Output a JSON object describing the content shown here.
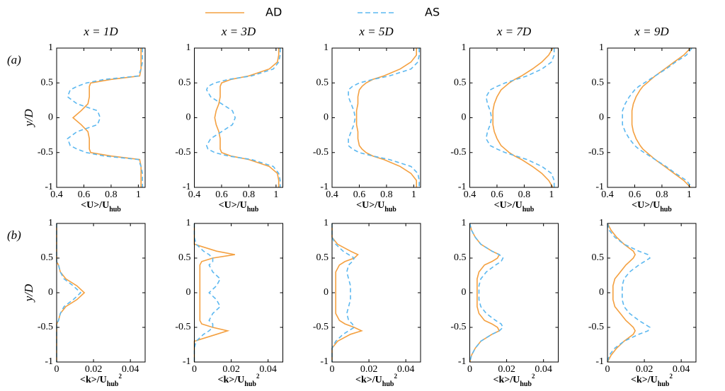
{
  "chart_data": [
    {
      "type": "line",
      "title": "x = 1D",
      "panel_label": "(a)",
      "ylabel": "y/D",
      "xlabel": [
        "<U>/U",
        "hub"
      ],
      "y": [
        1,
        0.9,
        0.8,
        0.7,
        0.6,
        0.55,
        0.5,
        0.45,
        0.4,
        0.3,
        0.2,
        0.1,
        0,
        -0.1,
        -0.2,
        -0.3,
        -0.4,
        -0.45,
        -0.5,
        -0.55,
        -0.6,
        -0.7,
        -0.8,
        -0.9,
        -1
      ],
      "xlim": [
        0.4,
        1.05
      ],
      "xticks": [
        0.4,
        0.6,
        0.8,
        1
      ],
      "ylim": [
        -1,
        1
      ],
      "yticks": [
        -1,
        -0.5,
        0,
        0.5,
        1
      ],
      "series": [
        {
          "name": "AD",
          "color": "#f4a040",
          "style": "solid",
          "values": [
            1.02,
            1.02,
            1.02,
            1.02,
            1.01,
            0.8,
            0.65,
            0.64,
            0.64,
            0.64,
            0.63,
            0.58,
            0.52,
            0.58,
            0.63,
            0.64,
            0.64,
            0.64,
            0.65,
            0.8,
            1.01,
            1.02,
            1.02,
            1.02,
            1.02
          ]
        },
        {
          "name": "AS",
          "color": "#5cb8f0",
          "style": "dashed",
          "values": [
            1.03,
            1.03,
            1.03,
            1.02,
            1.0,
            0.75,
            0.62,
            0.55,
            0.5,
            0.48,
            0.55,
            0.7,
            0.72,
            0.7,
            0.55,
            0.48,
            0.5,
            0.55,
            0.62,
            0.75,
            1.0,
            1.02,
            1.03,
            1.03,
            1.03
          ]
        }
      ]
    },
    {
      "type": "line",
      "title": "x = 3D",
      "xlabel": [
        "<U>/U",
        "hub"
      ],
      "y": [
        1,
        0.9,
        0.8,
        0.7,
        0.6,
        0.55,
        0.5,
        0.45,
        0.4,
        0.3,
        0.2,
        0.1,
        0,
        -0.1,
        -0.2,
        -0.3,
        -0.4,
        -0.45,
        -0.5,
        -0.55,
        -0.6,
        -0.7,
        -0.8,
        -0.9,
        -1
      ],
      "xlim": [
        0.4,
        1.05
      ],
      "xticks": [
        0.4,
        0.6,
        0.8,
        1
      ],
      "ylim": [
        -1,
        1
      ],
      "yticks": [
        -1,
        -0.5,
        0,
        0.5,
        1
      ],
      "series": [
        {
          "name": "AD",
          "color": "#f4a040",
          "style": "solid",
          "values": [
            1.02,
            1.02,
            1.01,
            0.95,
            0.8,
            0.67,
            0.6,
            0.59,
            0.59,
            0.59,
            0.58,
            0.56,
            0.55,
            0.56,
            0.58,
            0.59,
            0.59,
            0.59,
            0.6,
            0.67,
            0.8,
            0.95,
            1.01,
            1.02,
            1.02
          ]
        },
        {
          "name": "AS",
          "color": "#5cb8f0",
          "style": "dashed",
          "values": [
            1.03,
            1.03,
            1.02,
            0.98,
            0.82,
            0.65,
            0.55,
            0.5,
            0.49,
            0.52,
            0.6,
            0.68,
            0.7,
            0.68,
            0.6,
            0.52,
            0.49,
            0.5,
            0.55,
            0.65,
            0.82,
            0.98,
            1.02,
            1.03,
            1.03
          ]
        }
      ]
    },
    {
      "type": "line",
      "title": "x = 5D",
      "xlabel": [
        "<U>/U",
        "hub"
      ],
      "y": [
        1,
        0.9,
        0.8,
        0.7,
        0.6,
        0.55,
        0.5,
        0.45,
        0.4,
        0.3,
        0.2,
        0.1,
        0,
        -0.1,
        -0.2,
        -0.3,
        -0.4,
        -0.45,
        -0.5,
        -0.55,
        -0.6,
        -0.7,
        -0.8,
        -0.9,
        -1
      ],
      "xlim": [
        0.4,
        1.05
      ],
      "xticks": [
        0.4,
        0.6,
        0.8,
        1
      ],
      "ylim": [
        -1,
        1
      ],
      "yticks": [
        -1,
        -0.5,
        0,
        0.5,
        1
      ],
      "series": [
        {
          "name": "AD",
          "color": "#f4a040",
          "style": "solid",
          "values": [
            1.02,
            1.02,
            0.98,
            0.9,
            0.78,
            0.7,
            0.65,
            0.62,
            0.6,
            0.59,
            0.59,
            0.58,
            0.58,
            0.58,
            0.59,
            0.59,
            0.6,
            0.62,
            0.65,
            0.7,
            0.78,
            0.9,
            0.98,
            1.02,
            1.02
          ]
        },
        {
          "name": "AS",
          "color": "#5cb8f0",
          "style": "dashed",
          "values": [
            1.04,
            1.04,
            1.03,
            0.98,
            0.82,
            0.7,
            0.6,
            0.55,
            0.52,
            0.52,
            0.54,
            0.56,
            0.57,
            0.56,
            0.54,
            0.52,
            0.52,
            0.55,
            0.6,
            0.7,
            0.82,
            0.98,
            1.03,
            1.04,
            1.04
          ]
        }
      ]
    },
    {
      "type": "line",
      "title": "x = 7D",
      "xlabel": [
        "<U>/U",
        "hub"
      ],
      "y": [
        1,
        0.9,
        0.8,
        0.7,
        0.6,
        0.55,
        0.5,
        0.45,
        0.4,
        0.3,
        0.2,
        0.1,
        0,
        -0.1,
        -0.2,
        -0.3,
        -0.4,
        -0.45,
        -0.5,
        -0.55,
        -0.6,
        -0.7,
        -0.8,
        -0.9,
        -1
      ],
      "xlim": [
        0.4,
        1.05
      ],
      "xticks": [
        0.4,
        0.6,
        0.8,
        1
      ],
      "ylim": [
        -1,
        1
      ],
      "yticks": [
        -1,
        -0.5,
        0,
        0.5,
        1
      ],
      "series": [
        {
          "name": "AD",
          "color": "#f4a040",
          "style": "solid",
          "values": [
            1.01,
            0.98,
            0.93,
            0.86,
            0.78,
            0.73,
            0.69,
            0.66,
            0.63,
            0.6,
            0.58,
            0.57,
            0.57,
            0.57,
            0.58,
            0.6,
            0.63,
            0.66,
            0.69,
            0.73,
            0.78,
            0.86,
            0.93,
            0.98,
            1.01
          ]
        },
        {
          "name": "AS",
          "color": "#5cb8f0",
          "style": "dashed",
          "values": [
            1.02,
            1.02,
            1.0,
            0.93,
            0.82,
            0.74,
            0.66,
            0.6,
            0.55,
            0.52,
            0.53,
            0.55,
            0.56,
            0.55,
            0.53,
            0.52,
            0.55,
            0.6,
            0.66,
            0.74,
            0.82,
            0.93,
            1.0,
            1.02,
            1.02
          ]
        }
      ]
    },
    {
      "type": "line",
      "title": "x = 9D",
      "xlabel": [
        "<U>/U",
        "hub"
      ],
      "y": [
        1,
        0.9,
        0.8,
        0.7,
        0.6,
        0.55,
        0.5,
        0.45,
        0.4,
        0.3,
        0.2,
        0.1,
        0,
        -0.1,
        -0.2,
        -0.3,
        -0.4,
        -0.45,
        -0.5,
        -0.55,
        -0.6,
        -0.7,
        -0.8,
        -0.9,
        -1
      ],
      "xlim": [
        0.4,
        1.05
      ],
      "xticks": [
        0.4,
        0.6,
        0.8,
        1
      ],
      "ylim": [
        -1,
        1
      ],
      "yticks": [
        -1,
        -0.5,
        0,
        0.5,
        1
      ],
      "series": [
        {
          "name": "AD",
          "color": "#f4a040",
          "style": "solid",
          "values": [
            1.01,
            0.96,
            0.89,
            0.82,
            0.75,
            0.72,
            0.69,
            0.66,
            0.64,
            0.61,
            0.59,
            0.58,
            0.58,
            0.58,
            0.59,
            0.61,
            0.64,
            0.66,
            0.69,
            0.72,
            0.75,
            0.82,
            0.89,
            0.96,
            1.01
          ]
        },
        {
          "name": "AS",
          "color": "#5cb8f0",
          "style": "dashed",
          "values": [
            1.02,
            0.98,
            0.9,
            0.83,
            0.75,
            0.71,
            0.67,
            0.63,
            0.6,
            0.56,
            0.53,
            0.51,
            0.51,
            0.51,
            0.53,
            0.56,
            0.6,
            0.63,
            0.67,
            0.71,
            0.75,
            0.83,
            0.9,
            0.98,
            1.02
          ]
        }
      ]
    },
    {
      "type": "line",
      "panel_label": "(b)",
      "ylabel": "y/D",
      "xlabel": [
        "<k>/U",
        "hub",
        "2"
      ],
      "y": [
        1,
        0.9,
        0.8,
        0.7,
        0.6,
        0.55,
        0.5,
        0.45,
        0.4,
        0.3,
        0.2,
        0.1,
        0,
        -0.1,
        -0.2,
        -0.3,
        -0.4,
        -0.45,
        -0.5,
        -0.55,
        -0.6,
        -0.7,
        -0.8,
        -0.9,
        -1
      ],
      "xlim": [
        0,
        0.048
      ],
      "xticks": [
        0,
        0.02,
        0.04
      ],
      "ylim": [
        -1,
        1
      ],
      "yticks": [
        -1,
        -0.5,
        0,
        0.5,
        1
      ],
      "series": [
        {
          "name": "AD",
          "color": "#f4a040",
          "style": "solid",
          "values": [
            0,
            0,
            0,
            0,
            0,
            0,
            0,
            0,
            0.001,
            0.002,
            0.005,
            0.011,
            0.015,
            0.011,
            0.005,
            0.002,
            0.001,
            0,
            0,
            0,
            0,
            0,
            0,
            0,
            0
          ]
        },
        {
          "name": "AS",
          "color": "#5cb8f0",
          "style": "dashed",
          "values": [
            0,
            0,
            0,
            0,
            0,
            0,
            0,
            0,
            0.001,
            0.002,
            0.004,
            0.009,
            0.013,
            0.009,
            0.004,
            0.002,
            0.001,
            0,
            0,
            0,
            0,
            0,
            0,
            0,
            0
          ]
        }
      ]
    },
    {
      "type": "line",
      "xlabel": [
        "<k>/U",
        "hub",
        "2"
      ],
      "y": [
        1,
        0.9,
        0.8,
        0.7,
        0.6,
        0.55,
        0.5,
        0.45,
        0.4,
        0.3,
        0.2,
        0.1,
        0,
        -0.1,
        -0.2,
        -0.3,
        -0.4,
        -0.45,
        -0.5,
        -0.55,
        -0.6,
        -0.7,
        -0.8,
        -0.9,
        -1
      ],
      "xlim": [
        0,
        0.048
      ],
      "xticks": [
        0,
        0.02,
        0.04
      ],
      "ylim": [
        -1,
        1
      ],
      "yticks": [
        -1,
        -0.5,
        0,
        0.5,
        1
      ],
      "series": [
        {
          "name": "AD",
          "color": "#f4a040",
          "style": "solid",
          "values": [
            0,
            0,
            0,
            0,
            0.012,
            0.022,
            0.01,
            0.004,
            0.003,
            0.003,
            0.003,
            0.003,
            0.003,
            0.003,
            0.003,
            0.003,
            0.003,
            0.004,
            0.01,
            0.018,
            0.012,
            0,
            0,
            0,
            0
          ]
        },
        {
          "name": "AS",
          "color": "#5cb8f0",
          "style": "dashed",
          "values": [
            0,
            0,
            0,
            0.001,
            0.005,
            0.008,
            0.01,
            0.01,
            0.008,
            0.01,
            0.014,
            0.012,
            0.008,
            0.012,
            0.014,
            0.01,
            0.008,
            0.01,
            0.01,
            0.008,
            0.005,
            0.001,
            0,
            0,
            0
          ]
        }
      ]
    },
    {
      "type": "line",
      "xlabel": [
        "<k>/U",
        "hub",
        "2"
      ],
      "y": [
        1,
        0.9,
        0.8,
        0.7,
        0.6,
        0.55,
        0.5,
        0.45,
        0.4,
        0.3,
        0.2,
        0.1,
        0,
        -0.1,
        -0.2,
        -0.3,
        -0.4,
        -0.45,
        -0.5,
        -0.55,
        -0.6,
        -0.7,
        -0.8,
        -0.9,
        -1
      ],
      "xlim": [
        0,
        0.048
      ],
      "xticks": [
        0,
        0.02,
        0.04
      ],
      "ylim": [
        -1,
        1
      ],
      "yticks": [
        -1,
        -0.5,
        0,
        0.5,
        1
      ],
      "series": [
        {
          "name": "AD",
          "color": "#f4a040",
          "style": "solid",
          "values": [
            0,
            0,
            0,
            0.003,
            0.01,
            0.014,
            0.012,
            0.007,
            0.004,
            0.002,
            0.002,
            0.002,
            0.002,
            0.002,
            0.002,
            0.002,
            0.004,
            0.007,
            0.012,
            0.016,
            0.01,
            0.003,
            0,
            0,
            0
          ]
        },
        {
          "name": "AS",
          "color": "#5cb8f0",
          "style": "dashed",
          "values": [
            0,
            0,
            0,
            0.002,
            0.006,
            0.009,
            0.012,
            0.011,
            0.009,
            0.008,
            0.009,
            0.01,
            0.01,
            0.01,
            0.009,
            0.008,
            0.009,
            0.011,
            0.012,
            0.009,
            0.006,
            0.002,
            0,
            0,
            0
          ]
        }
      ]
    },
    {
      "type": "line",
      "xlabel": [
        "<k>/U",
        "hub",
        "2"
      ],
      "y": [
        1,
        0.9,
        0.8,
        0.7,
        0.6,
        0.55,
        0.5,
        0.45,
        0.4,
        0.3,
        0.2,
        0.1,
        0,
        -0.1,
        -0.2,
        -0.3,
        -0.4,
        -0.45,
        -0.5,
        -0.55,
        -0.6,
        -0.7,
        -0.8,
        -0.9,
        -1
      ],
      "xlim": [
        0,
        0.048
      ],
      "xticks": [
        0,
        0.02,
        0.04
      ],
      "ylim": [
        -1,
        1
      ],
      "yticks": [
        -1,
        -0.5,
        0,
        0.5,
        1
      ],
      "series": [
        {
          "name": "AD",
          "color": "#f4a040",
          "style": "solid",
          "values": [
            0,
            0.001,
            0.003,
            0.006,
            0.012,
            0.016,
            0.015,
            0.012,
            0.008,
            0.005,
            0.004,
            0.004,
            0.004,
            0.004,
            0.004,
            0.005,
            0.008,
            0.012,
            0.015,
            0.016,
            0.012,
            0.006,
            0.003,
            0.001,
            0
          ]
        },
        {
          "name": "AS",
          "color": "#5cb8f0",
          "style": "dashed",
          "values": [
            0,
            0.001,
            0.003,
            0.006,
            0.012,
            0.016,
            0.018,
            0.017,
            0.014,
            0.009,
            0.006,
            0.005,
            0.005,
            0.005,
            0.006,
            0.009,
            0.014,
            0.017,
            0.018,
            0.016,
            0.012,
            0.006,
            0.003,
            0.001,
            0
          ]
        }
      ]
    },
    {
      "type": "line",
      "xlabel": [
        "<k>/U",
        "hub",
        "2"
      ],
      "y": [
        1,
        0.9,
        0.8,
        0.7,
        0.6,
        0.55,
        0.5,
        0.45,
        0.4,
        0.3,
        0.2,
        0.1,
        0,
        -0.1,
        -0.2,
        -0.3,
        -0.4,
        -0.45,
        -0.5,
        -0.55,
        -0.6,
        -0.7,
        -0.8,
        -0.9,
        -1
      ],
      "xlim": [
        0,
        0.048
      ],
      "xticks": [
        0,
        0.02,
        0.04
      ],
      "ylim": [
        -1,
        1
      ],
      "yticks": [
        -1,
        -0.5,
        0,
        0.5,
        1
      ],
      "series": [
        {
          "name": "AD",
          "color": "#f4a040",
          "style": "solid",
          "values": [
            0,
            0.002,
            0.005,
            0.009,
            0.014,
            0.015,
            0.014,
            0.012,
            0.01,
            0.007,
            0.004,
            0.003,
            0.003,
            0.003,
            0.004,
            0.007,
            0.01,
            0.012,
            0.014,
            0.015,
            0.014,
            0.009,
            0.005,
            0.002,
            0
          ]
        },
        {
          "name": "AS",
          "color": "#5cb8f0",
          "style": "dashed",
          "values": [
            0,
            0.001,
            0.004,
            0.009,
            0.017,
            0.022,
            0.023,
            0.02,
            0.017,
            0.012,
            0.009,
            0.008,
            0.008,
            0.008,
            0.009,
            0.012,
            0.017,
            0.02,
            0.023,
            0.022,
            0.017,
            0.009,
            0.004,
            0.001,
            0
          ]
        }
      ]
    }
  ]
}
